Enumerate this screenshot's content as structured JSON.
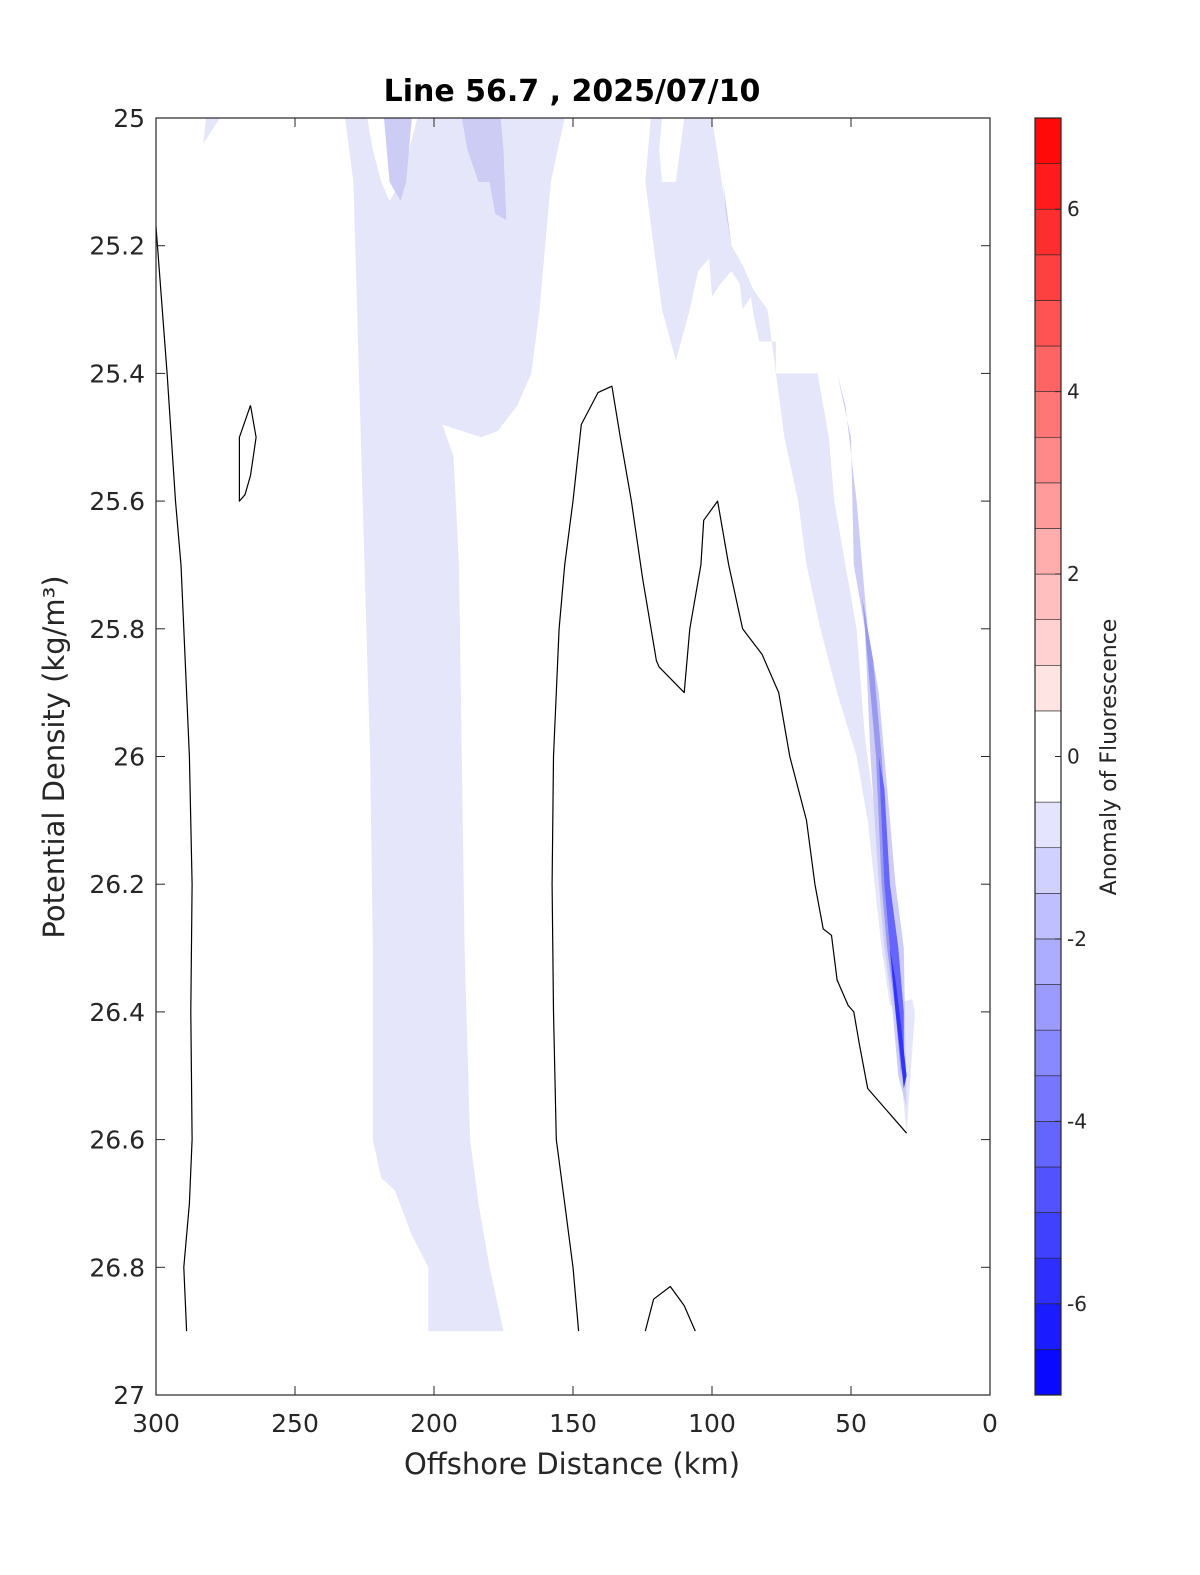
{
  "chart_data": {
    "type": "contour",
    "title": "Line 56.7 , 2025/07/10",
    "xlabel": "Offshore Distance (km)",
    "ylabel": "Potential Density (kg/m³)",
    "xlim": [
      300,
      0
    ],
    "ylim": [
      25,
      27
    ],
    "xticks": [
      "300",
      "250",
      "200",
      "150",
      "100",
      "50",
      "0"
    ],
    "yticks": [
      "25",
      "25.2",
      "25.4",
      "25.6",
      "25.8",
      "26",
      "26.2",
      "26.4",
      "26.6",
      "26.8",
      "27"
    ],
    "colorbar": {
      "label": "Anomaly of Fluorescence",
      "range": [
        -7,
        7
      ],
      "levels": [
        -7,
        -6.5,
        -6,
        -5.5,
        -5,
        -4.5,
        -4,
        -3.5,
        -3,
        -2.5,
        -2,
        -1.5,
        -1,
        -0.5,
        0.5,
        1,
        1.5,
        2,
        2.5,
        3,
        3.5,
        4,
        4.5,
        5,
        5.5,
        6,
        6.5,
        7
      ],
      "ticks": [
        "-6",
        "-4",
        "-2",
        "0",
        "2",
        "4",
        "6"
      ],
      "low_color": "#0000ff",
      "mid_color": "#ffffff",
      "high_color": "#ff0000"
    },
    "filled_regions": [
      {
        "level": -0.75,
        "color": "#e6e6fa",
        "points": [
          [
            232,
            25
          ],
          [
            229,
            25.1
          ],
          [
            227,
            25.4
          ],
          [
            225,
            25.7
          ],
          [
            223,
            26
          ],
          [
            222,
            26.3
          ],
          [
            222,
            26.6
          ],
          [
            219,
            26.66
          ],
          [
            214,
            26.68
          ],
          [
            208,
            26.75
          ],
          [
            202,
            26.8
          ],
          [
            202,
            26.9
          ],
          [
            175,
            26.9
          ],
          [
            180,
            26.8
          ],
          [
            184,
            26.7
          ],
          [
            187,
            26.6
          ],
          [
            189,
            26.3
          ],
          [
            190,
            26
          ],
          [
            191,
            25.7
          ],
          [
            193,
            25.53
          ],
          [
            197,
            25.48
          ],
          [
            183,
            25.5
          ],
          [
            177,
            25.49
          ],
          [
            170,
            25.45
          ],
          [
            165,
            25.4
          ],
          [
            162,
            25.3
          ],
          [
            160,
            25.2
          ],
          [
            158,
            25.1
          ],
          [
            153,
            25
          ],
          [
            171,
            25
          ],
          [
            172,
            25.05
          ],
          [
            170,
            25.15
          ],
          [
            168,
            25.17
          ],
          [
            163,
            25.1
          ],
          [
            160,
            25
          ],
          [
            190,
            25
          ],
          [
            188,
            25.05
          ],
          [
            185,
            25.1
          ],
          [
            180,
            25.1
          ],
          [
            176,
            25.05
          ],
          [
            176,
            25
          ],
          [
            206,
            25
          ],
          [
            209,
            25.05
          ],
          [
            212,
            25.1
          ],
          [
            216,
            25.13
          ],
          [
            219,
            25.1
          ],
          [
            222,
            25.05
          ],
          [
            224,
            25
          ]
        ]
      },
      {
        "level": -0.75,
        "color": "#e6e6fa",
        "points": [
          [
            277,
            25
          ],
          [
            282,
            25
          ],
          [
            283,
            25.04
          ]
        ]
      },
      {
        "level": -0.75,
        "color": "#e6e6fa",
        "points": [
          [
            122,
            25
          ],
          [
            124,
            25.1
          ],
          [
            121,
            25.2
          ],
          [
            118,
            25.3
          ],
          [
            113,
            25.38
          ],
          [
            108,
            25.3
          ],
          [
            105,
            25.24
          ],
          [
            101,
            25.22
          ],
          [
            100,
            25.28
          ],
          [
            97,
            25.26
          ],
          [
            93,
            25.24
          ],
          [
            90,
            25.26
          ],
          [
            89,
            25.3
          ],
          [
            86,
            25.28
          ],
          [
            85,
            25.31
          ],
          [
            83,
            25.35
          ],
          [
            77,
            25.35
          ],
          [
            77,
            25.4
          ],
          [
            62,
            25.4
          ],
          [
            58,
            25.5
          ],
          [
            56,
            25.6
          ],
          [
            52,
            25.7
          ],
          [
            48,
            25.8
          ],
          [
            45,
            25.97
          ],
          [
            41,
            26.1
          ],
          [
            38,
            26.2
          ],
          [
            36,
            26.28
          ],
          [
            34,
            26.4
          ],
          [
            32,
            26.5
          ],
          [
            30,
            26.59
          ],
          [
            27,
            26.4
          ],
          [
            28,
            26.38
          ],
          [
            36,
            26.39
          ],
          [
            39,
            26.3
          ],
          [
            44,
            26.1
          ],
          [
            48,
            26
          ],
          [
            55,
            25.9
          ],
          [
            61,
            25.8
          ],
          [
            66,
            25.7
          ],
          [
            69,
            25.6
          ],
          [
            74,
            25.5
          ],
          [
            77,
            25.4
          ],
          [
            80,
            25.3
          ],
          [
            85,
            25.27
          ],
          [
            89,
            25.23
          ],
          [
            93,
            25.2
          ],
          [
            100,
            25
          ],
          [
            110,
            25
          ],
          [
            113,
            25.1
          ],
          [
            118,
            25.1
          ],
          [
            119,
            25.05
          ],
          [
            118,
            25
          ]
        ]
      },
      {
        "level": -1.25,
        "color": "#ccccf5",
        "points": [
          [
            218,
            25
          ],
          [
            216,
            25.1
          ],
          [
            212,
            25.13
          ],
          [
            210,
            25.1
          ],
          [
            208,
            25
          ],
          [
            190,
            25
          ],
          [
            188,
            25.05
          ],
          [
            184,
            25.1
          ],
          [
            180,
            25.1
          ],
          [
            178,
            25.15
          ],
          [
            174,
            25.16
          ],
          [
            175,
            25.05
          ],
          [
            176,
            25
          ]
        ]
      },
      {
        "level": -1.25,
        "color": "#ccccf5",
        "points": [
          [
            98,
            25
          ],
          [
            96,
            25.1
          ],
          [
            93,
            25.2
          ],
          [
            95,
            25.15
          ]
        ]
      },
      {
        "level": -1.25,
        "color": "#ccccf5",
        "points": [
          [
            55,
            25.4
          ],
          [
            50,
            25.5
          ],
          [
            49,
            25.7
          ],
          [
            45,
            25.8
          ],
          [
            43,
            26
          ],
          [
            40,
            26.2
          ],
          [
            38,
            26.3
          ],
          [
            35,
            26.4
          ],
          [
            33,
            26.5
          ],
          [
            30,
            26.55
          ],
          [
            31,
            26.3
          ],
          [
            34,
            26.2
          ],
          [
            38,
            26
          ],
          [
            40,
            25.9
          ],
          [
            44,
            25.8
          ],
          [
            48,
            25.6
          ],
          [
            52,
            25.45
          ]
        ]
      },
      {
        "level": -2.5,
        "color": "#9999f0",
        "points": [
          [
            46,
            25.75
          ],
          [
            45,
            25.8
          ],
          [
            41,
            26
          ],
          [
            39,
            26.2
          ],
          [
            37,
            26.3
          ],
          [
            34,
            26.4
          ],
          [
            32,
            26.5
          ],
          [
            31,
            26.45
          ],
          [
            33,
            26.3
          ],
          [
            36,
            26.2
          ],
          [
            39,
            26
          ],
          [
            42,
            25.85
          ]
        ]
      },
      {
        "level": -3.75,
        "color": "#6666ff",
        "points": [
          [
            40,
            26
          ],
          [
            38,
            26.2
          ],
          [
            35,
            26.35
          ],
          [
            32,
            26.45
          ],
          [
            31,
            26.5
          ],
          [
            31,
            26.4
          ],
          [
            33,
            26.3
          ],
          [
            36,
            26.2
          ],
          [
            38,
            26.05
          ]
        ]
      },
      {
        "level": -5.25,
        "color": "#3333ff",
        "points": [
          [
            36,
            26.3
          ],
          [
            34,
            26.4
          ],
          [
            31,
            26.52
          ],
          [
            30,
            26.5
          ],
          [
            32,
            26.42
          ],
          [
            34,
            26.35
          ]
        ]
      }
    ],
    "contour_lines": [
      {
        "level": 0,
        "points": [
          [
            300,
            25.17
          ],
          [
            296,
            25.4
          ],
          [
            293,
            25.6
          ],
          [
            291,
            25.7
          ],
          [
            289,
            25.9
          ],
          [
            288,
            26
          ],
          [
            287,
            26.2
          ],
          [
            287.5,
            26.4
          ],
          [
            287,
            26.6
          ],
          [
            288,
            26.7
          ],
          [
            290,
            26.8
          ],
          [
            289,
            26.9
          ]
        ]
      },
      {
        "level": 0,
        "points": [
          [
            266,
            25.45
          ],
          [
            270,
            25.5
          ],
          [
            270,
            25.6
          ],
          [
            268,
            25.59
          ],
          [
            266,
            25.56
          ],
          [
            264,
            25.5
          ],
          [
            266,
            25.45
          ]
        ]
      },
      {
        "level": 0,
        "points": [
          [
            148,
            26.9
          ],
          [
            150,
            26.8
          ],
          [
            153,
            26.7
          ],
          [
            156,
            26.6
          ],
          [
            157,
            26.4
          ],
          [
            157.5,
            26.2
          ],
          [
            157,
            26
          ],
          [
            155,
            25.8
          ],
          [
            153,
            25.7
          ],
          [
            150,
            25.6
          ],
          [
            147,
            25.48
          ],
          [
            141,
            25.43
          ],
          [
            136,
            25.42
          ],
          [
            133,
            25.5
          ],
          [
            129,
            25.6
          ],
          [
            125,
            25.72
          ],
          [
            120,
            25.85
          ],
          [
            119,
            25.86
          ],
          [
            110,
            25.9
          ],
          [
            108,
            25.8
          ],
          [
            104,
            25.7
          ],
          [
            103,
            25.63
          ],
          [
            98,
            25.6
          ],
          [
            94,
            25.7
          ],
          [
            89,
            25.8
          ],
          [
            82,
            25.84
          ],
          [
            76,
            25.9
          ],
          [
            72,
            26
          ],
          [
            66,
            26.1
          ],
          [
            63,
            26.2
          ],
          [
            60,
            26.27
          ],
          [
            57,
            26.28
          ],
          [
            55,
            26.35
          ],
          [
            51,
            26.39
          ],
          [
            49,
            26.4
          ],
          [
            47,
            26.45
          ],
          [
            44,
            26.52
          ],
          [
            30,
            26.59
          ]
        ]
      },
      {
        "level": 0,
        "points": [
          [
            124,
            26.9
          ],
          [
            121,
            26.85
          ],
          [
            115,
            26.83
          ],
          [
            110,
            26.86
          ],
          [
            106,
            26.9
          ]
        ]
      }
    ]
  }
}
